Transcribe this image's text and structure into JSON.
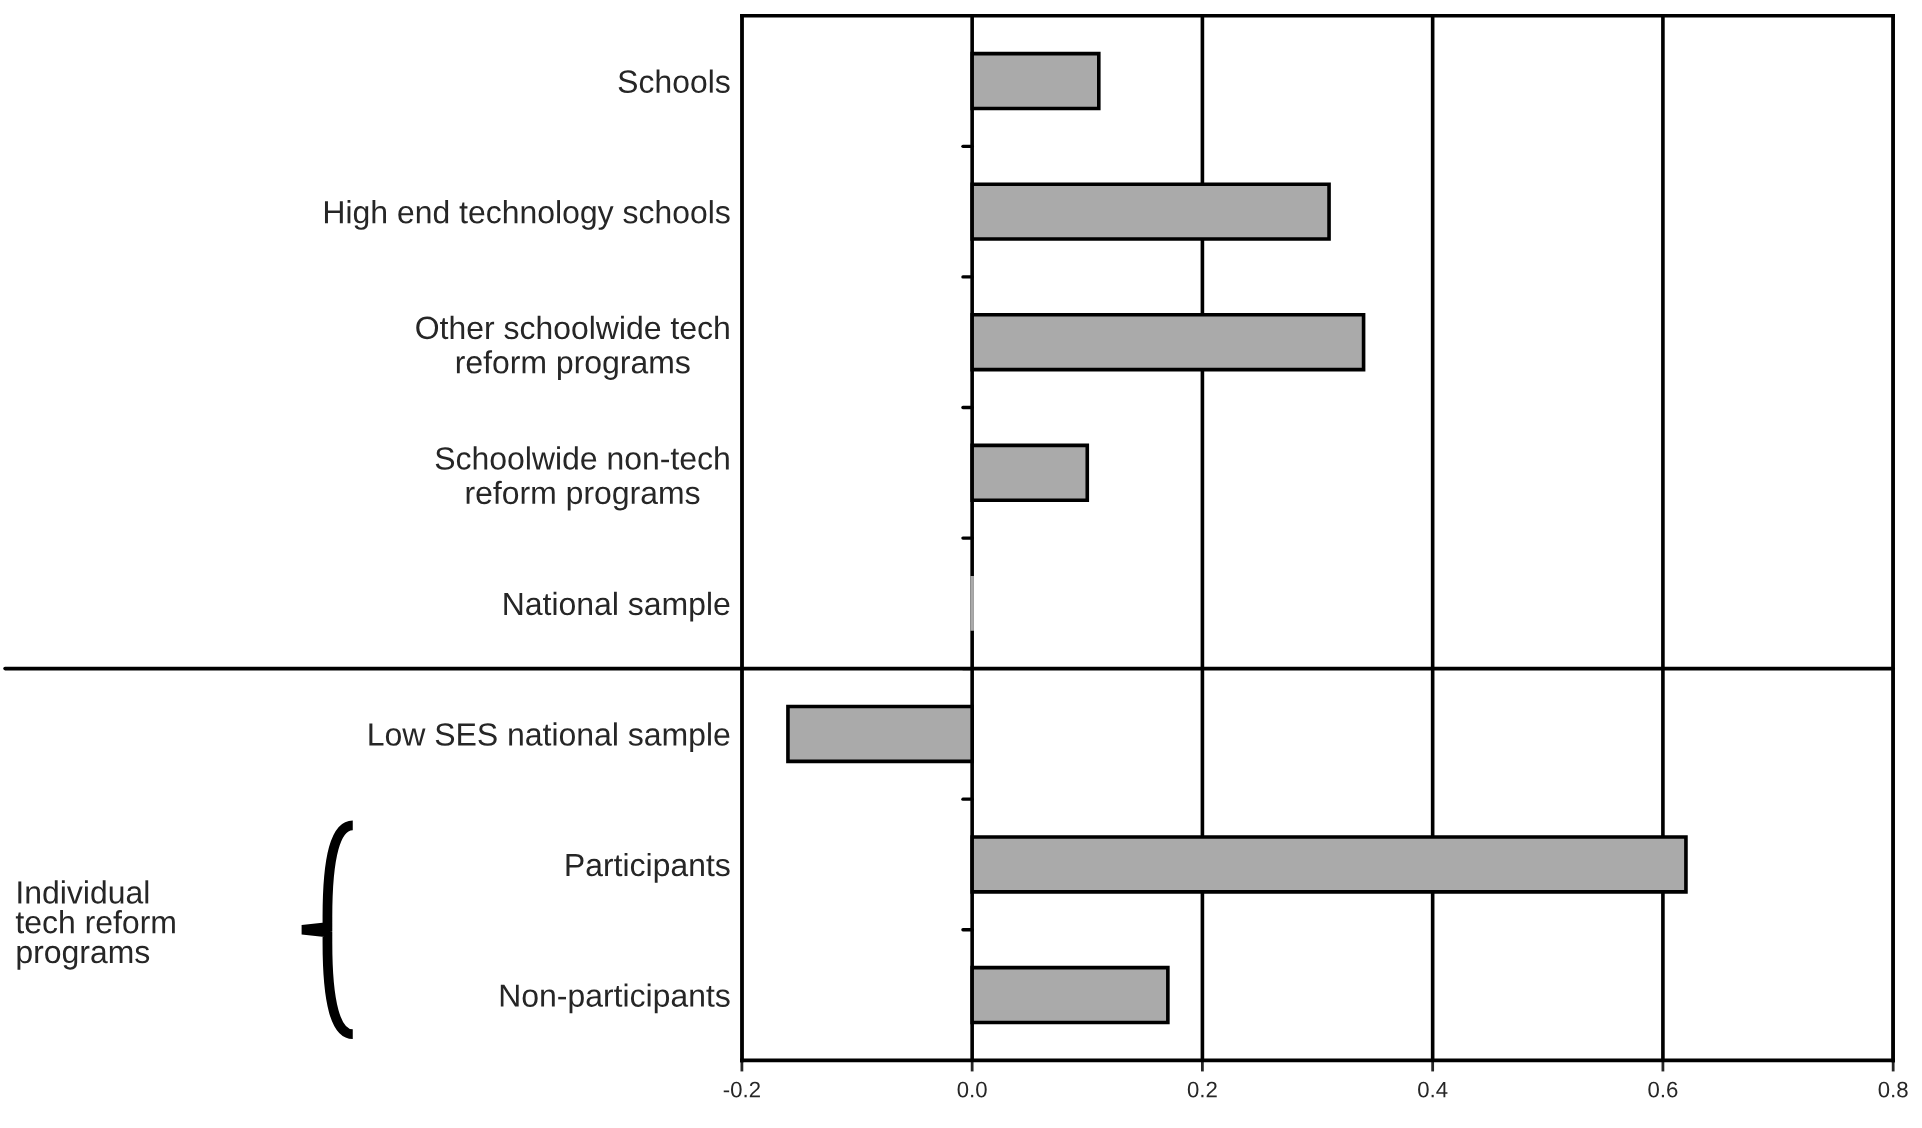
{
  "chart_data": {
    "type": "bar",
    "orientation": "horizontal",
    "categories": [
      "Schools",
      "High end technology schools",
      "Other schoolwide tech\nreform programs",
      "Schoolwide non-tech\nreform programs",
      "National sample",
      "Low SES national sample",
      "Participants",
      "Non-participants"
    ],
    "values": [
      0.11,
      0.31,
      0.34,
      0.1,
      0,
      -0.16,
      0.62,
      0.17
    ],
    "color": "#aaaaaa",
    "xlim": [
      -0.2,
      0.8
    ],
    "xticks": [
      {
        "value": -0.2,
        "label": "-0.2"
      },
      {
        "value": 0,
        "label": "0.0"
      },
      0.2,
      0.4,
      0.6,
      0.8
    ],
    "grid": "x",
    "annotations": [
      "Individual\ntech reform\nprograms"
    ]
  }
}
